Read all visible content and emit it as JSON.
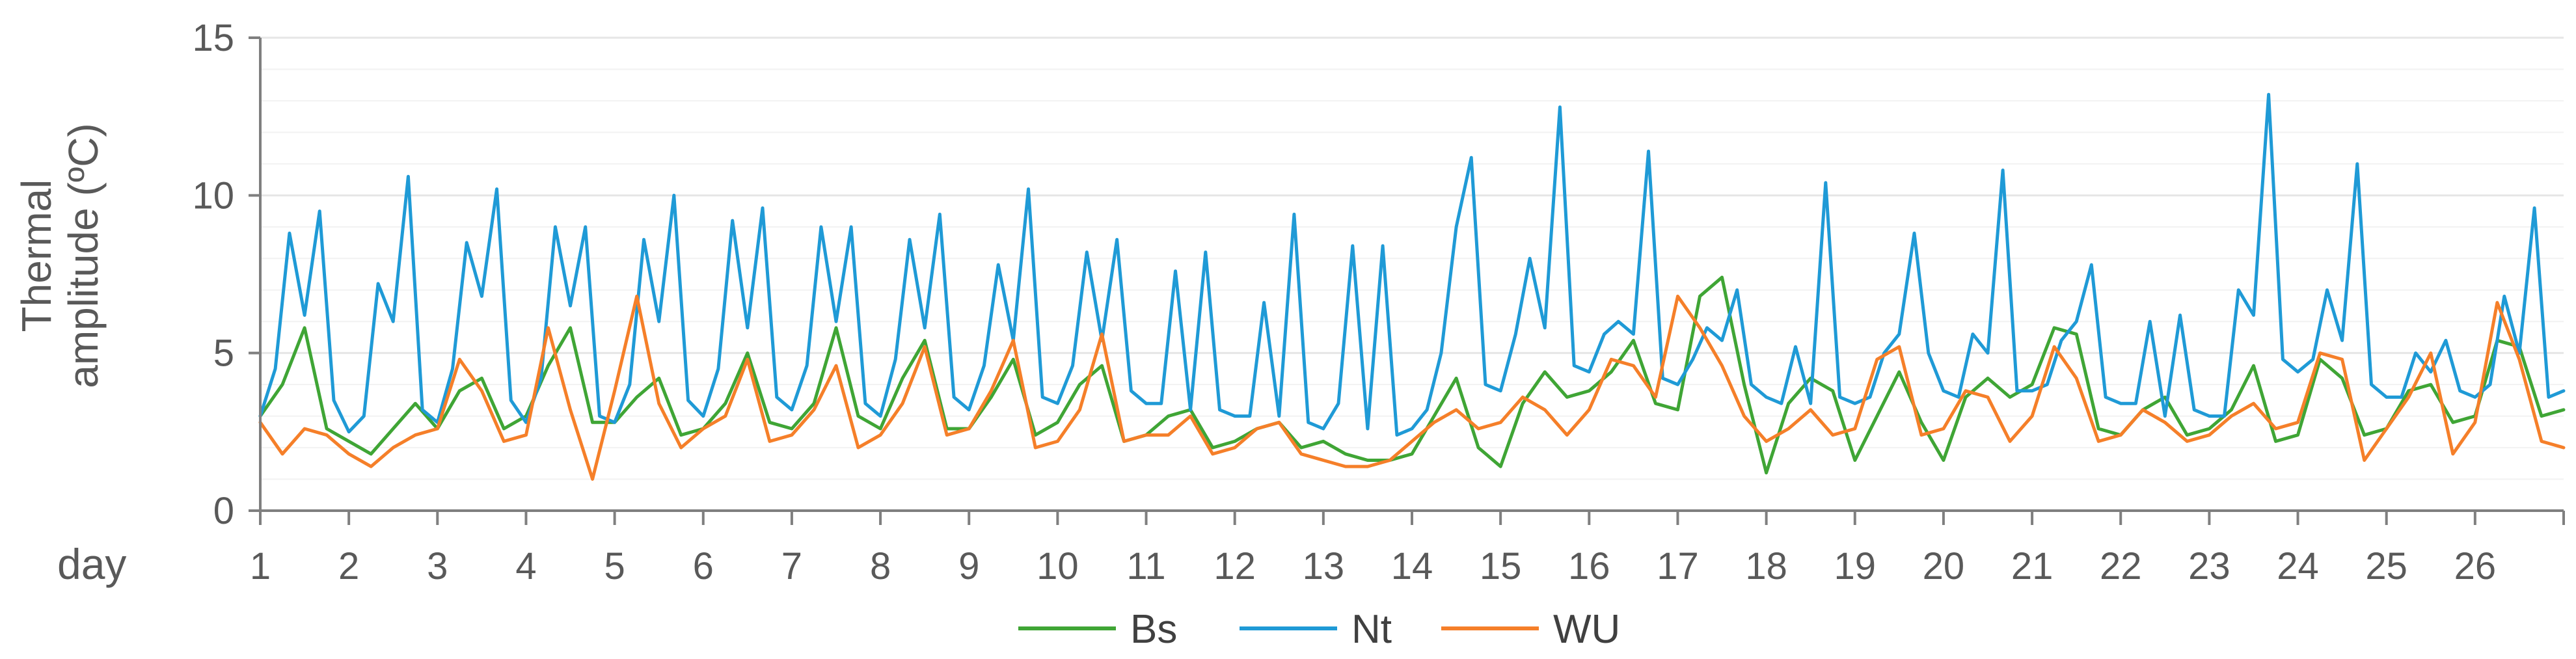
{
  "chart_data": {
    "type": "line",
    "ylabel_lines": [
      "Thermal",
      "amplitude (ºC)"
    ],
    "xlabel": "day",
    "ylim": [
      0,
      15
    ],
    "yticks": [
      "0",
      "5",
      "10",
      "15"
    ],
    "xlim": [
      1,
      27
    ],
    "xticks": [
      "1",
      "2",
      "3",
      "4",
      "5",
      "6",
      "7",
      "8",
      "9",
      "10",
      "11",
      "12",
      "13",
      "14",
      "15",
      "16",
      "17",
      "18",
      "19",
      "20",
      "21",
      "22",
      "23",
      "24",
      "25",
      "26"
    ],
    "grid": true,
    "legend_position": "bottom",
    "series": [
      {
        "name": "Bs",
        "color": "#3fa535",
        "x": [
          1.0,
          1.25,
          1.5,
          1.75,
          2.0,
          2.25,
          2.5,
          2.75,
          3.0,
          3.25,
          3.5,
          3.75,
          4.0,
          4.25,
          4.5,
          4.75,
          5.0,
          5.25,
          5.5,
          5.75,
          6.0,
          6.25,
          6.5,
          6.75,
          7.0,
          7.25,
          7.5,
          7.75,
          8.0,
          8.25,
          8.5,
          8.75,
          9.0,
          9.25,
          9.5,
          9.75,
          10.0,
          10.25,
          10.5,
          10.75,
          11.0,
          11.25,
          11.5,
          11.75,
          12.0,
          12.25,
          12.5,
          12.75,
          13.0,
          13.25,
          13.5,
          13.75,
          14.0,
          14.25,
          14.5,
          14.75,
          15.0,
          15.25,
          15.5,
          15.75,
          16.0,
          16.25,
          16.5,
          16.75,
          17.0,
          17.25,
          17.5,
          17.75,
          18.0,
          18.25,
          18.5,
          18.75,
          19.0,
          19.25,
          19.5,
          19.75,
          20.0,
          20.25,
          20.5,
          20.75,
          21.0,
          21.25,
          21.5,
          21.75,
          22.0,
          22.25,
          22.5,
          22.75,
          23.0,
          23.25,
          23.5,
          23.75,
          24.0,
          24.25,
          24.5,
          24.75,
          25.0,
          25.25,
          25.5,
          25.75,
          26.0,
          26.25,
          26.5,
          26.75,
          27.0
        ],
        "y": [
          3.0,
          4.0,
          5.8,
          2.6,
          2.2,
          1.8,
          2.6,
          3.4,
          2.6,
          3.8,
          4.2,
          2.6,
          3.0,
          4.6,
          5.8,
          2.8,
          2.8,
          3.6,
          4.2,
          2.4,
          2.6,
          3.4,
          5.0,
          2.8,
          2.6,
          3.4,
          5.8,
          3.0,
          2.6,
          4.2,
          5.4,
          2.6,
          2.6,
          3.6,
          4.8,
          2.4,
          2.8,
          4.0,
          4.6,
          2.2,
          2.4,
          3.0,
          3.2,
          2.0,
          2.2,
          2.6,
          2.8,
          2.0,
          2.2,
          1.8,
          1.6,
          1.6,
          1.8,
          3.0,
          4.2,
          2.0,
          1.4,
          3.4,
          4.4,
          3.6,
          3.8,
          4.4,
          5.4,
          3.4,
          3.2,
          6.8,
          7.4,
          4.0,
          1.2,
          3.4,
          4.2,
          3.8,
          1.6,
          3.0,
          4.4,
          2.8,
          1.6,
          3.6,
          4.2,
          3.6,
          4.0,
          5.8,
          5.6,
          2.6,
          2.4,
          3.2,
          3.6,
          2.4,
          2.6,
          3.2,
          4.6,
          2.2,
          2.4,
          4.8,
          4.2,
          2.4,
          2.6,
          3.8,
          4.0,
          2.8,
          3.0,
          5.4,
          5.2,
          3.0,
          3.2
        ]
      },
      {
        "name": "Nt",
        "color": "#1f9ad6",
        "x": [
          1.0,
          1.17,
          1.33,
          1.5,
          1.67,
          1.83,
          2.0,
          2.17,
          2.33,
          2.5,
          2.67,
          2.83,
          3.0,
          3.17,
          3.33,
          3.5,
          3.67,
          3.83,
          4.0,
          4.17,
          4.33,
          4.5,
          4.67,
          4.83,
          5.0,
          5.17,
          5.33,
          5.5,
          5.67,
          5.83,
          6.0,
          6.17,
          6.33,
          6.5,
          6.67,
          6.83,
          7.0,
          7.17,
          7.33,
          7.5,
          7.67,
          7.83,
          8.0,
          8.17,
          8.33,
          8.5,
          8.67,
          8.83,
          9.0,
          9.17,
          9.33,
          9.5,
          9.67,
          9.83,
          10.0,
          10.17,
          10.33,
          10.5,
          10.67,
          10.83,
          11.0,
          11.17,
          11.33,
          11.5,
          11.67,
          11.83,
          12.0,
          12.17,
          12.33,
          12.5,
          12.67,
          12.83,
          13.0,
          13.17,
          13.33,
          13.5,
          13.67,
          13.83,
          14.0,
          14.17,
          14.33,
          14.5,
          14.67,
          14.83,
          15.0,
          15.17,
          15.33,
          15.5,
          15.67,
          15.83,
          16.0,
          16.17,
          16.33,
          16.5,
          16.67,
          16.83,
          17.0,
          17.17,
          17.33,
          17.5,
          17.67,
          17.83,
          18.0,
          18.17,
          18.33,
          18.5,
          18.67,
          18.83,
          19.0,
          19.17,
          19.33,
          19.5,
          19.67,
          19.83,
          20.0,
          20.17,
          20.33,
          20.5,
          20.67,
          20.83,
          21.0,
          21.17,
          21.33,
          21.5,
          21.67,
          21.83,
          22.0,
          22.17,
          22.33,
          22.5,
          22.67,
          22.83,
          23.0,
          23.17,
          23.33,
          23.5,
          23.67,
          23.83,
          24.0,
          24.17,
          24.33,
          24.5,
          24.67,
          24.83,
          25.0,
          25.17,
          25.33,
          25.5,
          25.67,
          25.83,
          26.0,
          26.17,
          26.33,
          26.5,
          26.67,
          26.83,
          27.0
        ],
        "y": [
          3.0,
          4.5,
          8.8,
          6.2,
          9.5,
          3.5,
          2.5,
          3.0,
          7.2,
          6.0,
          10.6,
          3.2,
          2.8,
          4.5,
          8.5,
          6.8,
          10.2,
          3.5,
          2.8,
          4.2,
          9.0,
          6.5,
          9.0,
          3.0,
          2.8,
          4.0,
          8.6,
          6.0,
          10.0,
          3.5,
          3.0,
          4.5,
          9.2,
          5.8,
          9.6,
          3.6,
          3.2,
          4.6,
          9.0,
          6.0,
          9.0,
          3.4,
          3.0,
          4.8,
          8.6,
          5.8,
          9.4,
          3.6,
          3.2,
          4.6,
          7.8,
          5.4,
          10.2,
          3.6,
          3.4,
          4.6,
          8.2,
          5.4,
          8.6,
          3.8,
          3.4,
          3.4,
          7.6,
          3.2,
          8.2,
          3.2,
          3.0,
          3.0,
          6.6,
          3.0,
          9.4,
          2.8,
          2.6,
          3.4,
          8.4,
          2.6,
          8.4,
          2.4,
          2.6,
          3.2,
          5.0,
          9.0,
          11.2,
          4.0,
          3.8,
          5.6,
          8.0,
          5.8,
          12.8,
          4.6,
          4.4,
          5.6,
          6.0,
          5.6,
          11.4,
          4.2,
          4.0,
          4.8,
          5.8,
          5.4,
          7.0,
          4.0,
          3.6,
          3.4,
          5.2,
          3.4,
          10.4,
          3.6,
          3.4,
          3.6,
          5.0,
          5.6,
          8.8,
          5.0,
          3.8,
          3.6,
          5.6,
          5.0,
          10.8,
          3.8,
          3.8,
          4.0,
          5.4,
          6.0,
          7.8,
          3.6,
          3.4,
          3.4,
          6.0,
          3.0,
          6.2,
          3.2,
          3.0,
          3.0,
          7.0,
          6.2,
          13.2,
          4.8,
          4.4,
          4.8,
          7.0,
          5.4,
          11.0,
          4.0,
          3.6,
          3.6,
          5.0,
          4.4,
          5.4,
          3.8,
          3.6,
          4.0,
          6.8,
          5.0,
          9.6,
          3.6,
          3.8
        ]
      },
      {
        "name": "WU",
        "color": "#f57f29",
        "x": [
          1.0,
          1.25,
          1.5,
          1.75,
          2.0,
          2.25,
          2.5,
          2.75,
          3.0,
          3.25,
          3.5,
          3.75,
          4.0,
          4.25,
          4.5,
          4.75,
          5.0,
          5.25,
          5.5,
          5.75,
          6.0,
          6.25,
          6.5,
          6.75,
          7.0,
          7.25,
          7.5,
          7.75,
          8.0,
          8.25,
          8.5,
          8.75,
          9.0,
          9.25,
          9.5,
          9.75,
          10.0,
          10.25,
          10.5,
          10.75,
          11.0,
          11.25,
          11.5,
          11.75,
          12.0,
          12.25,
          12.5,
          12.75,
          13.0,
          13.25,
          13.5,
          13.75,
          14.0,
          14.25,
          14.5,
          14.75,
          15.0,
          15.25,
          15.5,
          15.75,
          16.0,
          16.25,
          16.5,
          16.75,
          17.0,
          17.25,
          17.5,
          17.75,
          18.0,
          18.25,
          18.5,
          18.75,
          19.0,
          19.25,
          19.5,
          19.75,
          20.0,
          20.25,
          20.5,
          20.75,
          21.0,
          21.25,
          21.5,
          21.75,
          22.0,
          22.25,
          22.5,
          22.75,
          23.0,
          23.25,
          23.5,
          23.75,
          24.0,
          24.25,
          24.5,
          24.75,
          25.0,
          25.25,
          25.5,
          25.75,
          26.0,
          26.25,
          26.5,
          26.75,
          27.0
        ],
        "y": [
          2.8,
          1.8,
          2.6,
          2.4,
          1.8,
          1.4,
          2.0,
          2.4,
          2.6,
          4.8,
          3.8,
          2.2,
          2.4,
          5.8,
          3.2,
          1.0,
          3.8,
          6.8,
          3.4,
          2.0,
          2.6,
          3.0,
          4.8,
          2.2,
          2.4,
          3.2,
          4.6,
          2.0,
          2.4,
          3.4,
          5.2,
          2.4,
          2.6,
          3.8,
          5.4,
          2.0,
          2.2,
          3.2,
          5.6,
          2.2,
          2.4,
          2.4,
          3.0,
          1.8,
          2.0,
          2.6,
          2.8,
          1.8,
          1.6,
          1.4,
          1.4,
          1.6,
          2.2,
          2.8,
          3.2,
          2.6,
          2.8,
          3.6,
          3.2,
          2.4,
          3.2,
          4.8,
          4.6,
          3.6,
          6.8,
          5.8,
          4.6,
          3.0,
          2.2,
          2.6,
          3.2,
          2.4,
          2.6,
          4.8,
          5.2,
          2.4,
          2.6,
          3.8,
          3.6,
          2.2,
          3.0,
          5.2,
          4.2,
          2.2,
          2.4,
          3.2,
          2.8,
          2.2,
          2.4,
          3.0,
          3.4,
          2.6,
          2.8,
          5.0,
          4.8,
          1.6,
          2.6,
          3.6,
          5.0,
          1.8,
          2.8,
          6.6,
          4.8,
          2.2,
          2.0
        ]
      }
    ]
  }
}
